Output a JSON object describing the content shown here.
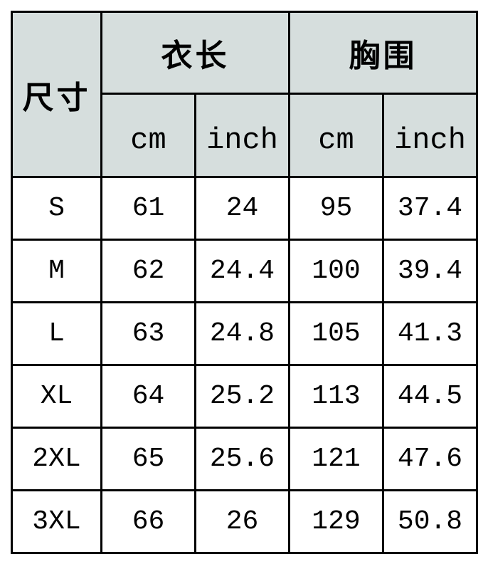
{
  "header": {
    "size_label": "尺寸",
    "groups": [
      "衣长",
      "胸围"
    ],
    "units": [
      "cm",
      "inch",
      "cm",
      "inch"
    ]
  },
  "rows": [
    [
      "S",
      "61",
      "24",
      "95",
      "37.4"
    ],
    [
      "M",
      "62",
      "24.4",
      "100",
      "39.4"
    ],
    [
      "L",
      "63",
      "24.8",
      "105",
      "41.3"
    ],
    [
      "XL",
      "64",
      "25.2",
      "113",
      "44.5"
    ],
    [
      "2XL",
      "65",
      "25.6",
      "121",
      "47.6"
    ],
    [
      "3XL",
      "66",
      "26",
      "129",
      "50.8"
    ]
  ],
  "colors": {
    "header_bg": "#d6dedd",
    "border": "#000000"
  }
}
